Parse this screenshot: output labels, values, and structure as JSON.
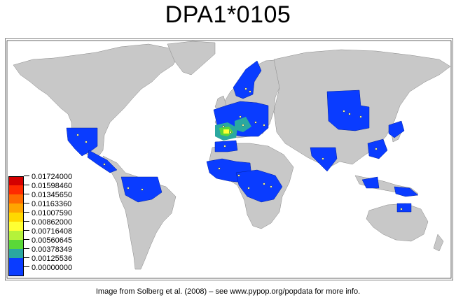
{
  "title": "DPA1*0105",
  "caption": "Image from Solberg et al. (2008) – see www.pypop.org/popdata for more info.",
  "legend": {
    "items": [
      {
        "label": "0.01724000",
        "color": "#d40000"
      },
      {
        "label": "0.01598460",
        "color": "#ff2a00"
      },
      {
        "label": "0.01345650",
        "color": "#ff6a00"
      },
      {
        "label": "0.01163360",
        "color": "#ffa500"
      },
      {
        "label": "0.01007590",
        "color": "#ffd800"
      },
      {
        "label": "0.00862000",
        "color": "#ffff33"
      },
      {
        "label": "0.00716408",
        "color": "#b5f23a"
      },
      {
        "label": "0.00560645",
        "color": "#5ad838"
      },
      {
        "label": "0.00378349",
        "color": "#2aa8a0"
      },
      {
        "label": "0.00125536",
        "color": "#0a3cff"
      },
      {
        "label": "0.00000000",
        "color": "#0a3cff"
      }
    ]
  },
  "colors": {
    "land": "#c8c8c8",
    "ocean": "#ffffff",
    "data_low": "#0a3cff",
    "data_mid": "#2aa8a0",
    "data_hi": "#ffff33"
  }
}
